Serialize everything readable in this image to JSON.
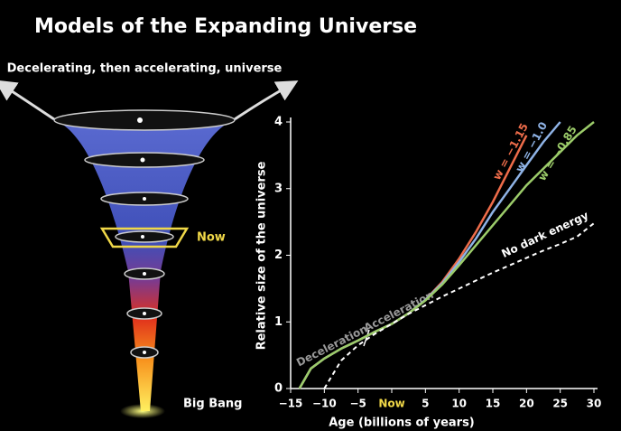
{
  "chart_data": {
    "type": "line",
    "title": "Models of the Expanding Universe",
    "diagram": {
      "top_label": "Decelerating, then accelerating, universe",
      "now_label": "Now",
      "bottom_label": "Big Bang"
    },
    "xlabel": "Age (billions of years)",
    "ylabel": "Relative size of the universe",
    "annotations": [
      "Deceleration",
      "Acceleration"
    ],
    "x": [
      -13.7,
      -12,
      -10,
      -7.5,
      -5,
      -2.5,
      0,
      2.5,
      5,
      7.5,
      10,
      12.5,
      15,
      17.5,
      20,
      22.5,
      25,
      27.5,
      30
    ],
    "series": [
      {
        "name": "w = −1.15",
        "color": "#ee6c4a",
        "dashed": false,
        "values": [
          0,
          0.3,
          0.45,
          0.6,
          0.72,
          0.85,
          0.97,
          1.13,
          1.33,
          1.6,
          1.95,
          2.35,
          2.8,
          3.3,
          3.8,
          null,
          null,
          null,
          null
        ]
      },
      {
        "name": "w = −1.0",
        "color": "#8fb3e6",
        "dashed": false,
        "values": [
          0,
          0.3,
          0.45,
          0.6,
          0.72,
          0.85,
          0.97,
          1.13,
          1.33,
          1.58,
          1.9,
          2.25,
          2.65,
          3.0,
          3.35,
          3.7,
          4.0,
          null,
          null
        ]
      },
      {
        "name": "w = −0.85",
        "color": "#9ccc6a",
        "dashed": false,
        "values": [
          0,
          0.3,
          0.45,
          0.6,
          0.72,
          0.85,
          0.97,
          1.13,
          1.32,
          1.56,
          1.85,
          2.15,
          2.45,
          2.75,
          3.05,
          3.3,
          3.55,
          3.8,
          4.0
        ]
      },
      {
        "name": "No dark energy",
        "color": "#ffffff",
        "dashed": true,
        "values": [
          null,
          null,
          0,
          0.42,
          0.65,
          0.82,
          0.97,
          1.12,
          1.25,
          1.38,
          1.5,
          1.62,
          1.74,
          1.85,
          1.96,
          2.07,
          2.17,
          2.28,
          2.48
        ]
      }
    ],
    "xlim": [
      -15,
      30
    ],
    "ylim": [
      0,
      4
    ],
    "xticks": [
      {
        "value": -15,
        "label": "−15"
      },
      {
        "value": -10,
        "label": "−10"
      },
      {
        "value": -5,
        "label": "−5"
      },
      {
        "value": 0,
        "label": "Now"
      },
      5,
      10,
      15,
      20,
      25,
      30
    ],
    "yticks": [
      0,
      1,
      2,
      3,
      4
    ]
  }
}
